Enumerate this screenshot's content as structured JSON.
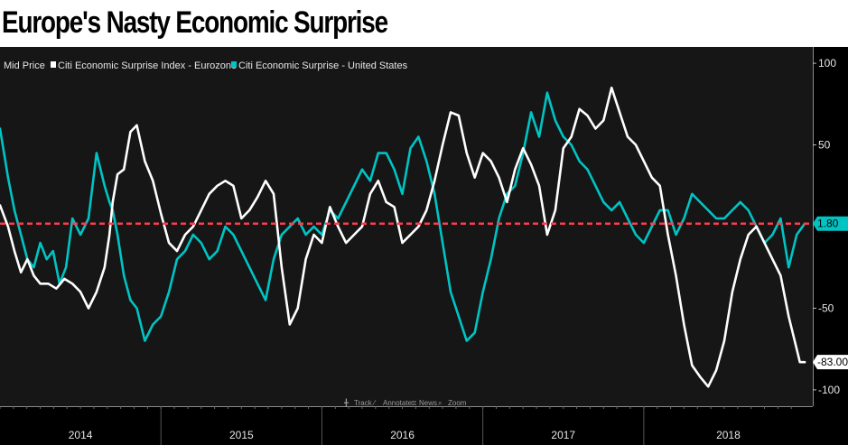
{
  "title": "Europe's Nasty Economic Surprise",
  "legend": {
    "prefix": "Mid Price",
    "series": [
      {
        "name": "Citi Economic Surprise Index - Eurozone",
        "color": "#ffffff"
      },
      {
        "name": "Citi Economic Surprise - United States",
        "color": "#00c4c4"
      }
    ]
  },
  "toolbar": [
    {
      "label": "Track",
      "icon": "crosshair-icon"
    },
    {
      "label": "Annotate",
      "icon": "pencil-icon"
    },
    {
      "label": "News",
      "icon": "news-icon"
    },
    {
      "label": "Zoom",
      "icon": "magnifier-icon"
    }
  ],
  "colors": {
    "background": "#000000",
    "plot_background": "#161616",
    "reference_line": "#ff3b4e",
    "us_tag": "#00c4c4",
    "ez_tag": "#ffffff"
  },
  "chart_data": {
    "type": "line",
    "title": "Europe's Nasty Economic Surprise",
    "xlabel": "",
    "ylabel": "",
    "x_unit": "year",
    "xlim": [
      2013.55,
      2018.6
    ],
    "ylim": [
      -110,
      110
    ],
    "y_ticks": [
      100,
      50,
      -50,
      -100
    ],
    "y_tick_labels": [
      "100",
      "50",
      "-50",
      "-100"
    ],
    "x_periods": [
      {
        "label": "2014",
        "start": 2013.55,
        "end": 2014.55
      },
      {
        "label": "2015",
        "start": 2014.55,
        "end": 2015.55
      },
      {
        "label": "2016",
        "start": 2015.55,
        "end": 2016.55
      },
      {
        "label": "2017",
        "start": 2016.55,
        "end": 2017.55
      },
      {
        "label": "2018",
        "start": 2017.55,
        "end": 2018.6
      }
    ],
    "grid": false,
    "legend_position": "top-left",
    "reference_line": {
      "value": 1.8,
      "label": "1.80",
      "style": "dashed"
    },
    "last_value_tags": [
      {
        "series": "Citi Economic Surprise - United States",
        "label": "1.80",
        "value": 1.8
      },
      {
        "series": "Citi Economic Surprise Index - Eurozone",
        "label": "-83.00",
        "value": -83.0
      }
    ],
    "series": [
      {
        "name": "Citi Economic Surprise Index - Eurozone",
        "color": "#ffffff",
        "x": [
          2013.55,
          2013.6,
          2013.64,
          2013.68,
          2013.72,
          2013.76,
          2013.8,
          2013.85,
          2013.9,
          2013.95,
          2014.0,
          2014.05,
          2014.1,
          2014.15,
          2014.2,
          2014.23,
          2014.25,
          2014.28,
          2014.32,
          2014.36,
          2014.4,
          2014.45,
          2014.5,
          2014.55,
          2014.6,
          2014.65,
          2014.7,
          2014.75,
          2014.8,
          2014.85,
          2014.9,
          2014.95,
          2015.0,
          2015.05,
          2015.1,
          2015.15,
          2015.2,
          2015.25,
          2015.3,
          2015.35,
          2015.4,
          2015.45,
          2015.5,
          2015.55,
          2015.6,
          2015.65,
          2015.7,
          2015.75,
          2015.8,
          2015.85,
          2015.9,
          2015.95,
          2016.0,
          2016.05,
          2016.1,
          2016.15,
          2016.2,
          2016.25,
          2016.3,
          2016.35,
          2016.4,
          2016.45,
          2016.5,
          2016.55,
          2016.6,
          2016.65,
          2016.7,
          2016.75,
          2016.8,
          2016.85,
          2016.9,
          2016.95,
          2017.0,
          2017.05,
          2017.1,
          2017.15,
          2017.2,
          2017.25,
          2017.3,
          2017.35,
          2017.4,
          2017.45,
          2017.5,
          2017.55,
          2017.6,
          2017.65,
          2017.7,
          2017.75,
          2017.8,
          2017.85,
          2017.9,
          2017.95,
          2018.0,
          2018.05,
          2018.1,
          2018.15,
          2018.2,
          2018.25,
          2018.3,
          2018.35,
          2018.4,
          2018.45,
          2018.5,
          2018.52,
          2018.55
        ],
        "y": [
          13,
          0,
          -15,
          -28,
          -20,
          -30,
          -35,
          -35,
          -38,
          -32,
          -35,
          -40,
          -50,
          -40,
          -25,
          -5,
          15,
          32,
          35,
          58,
          62,
          40,
          28,
          8,
          -10,
          -15,
          -5,
          0,
          10,
          20,
          25,
          28,
          25,
          5,
          10,
          18,
          28,
          20,
          -25,
          -60,
          -50,
          -20,
          -5,
          -10,
          12,
          0,
          -10,
          -5,
          0,
          20,
          28,
          15,
          12,
          -10,
          -5,
          0,
          10,
          28,
          50,
          70,
          68,
          45,
          30,
          45,
          40,
          30,
          15,
          35,
          48,
          38,
          25,
          -5,
          10,
          48,
          55,
          72,
          68,
          60,
          65,
          85,
          70,
          55,
          50,
          40,
          30,
          25,
          -5,
          -30,
          -60,
          -85,
          -92,
          -98,
          -88,
          -70,
          -40,
          -20,
          -5,
          0,
          -10,
          -20,
          -30,
          -55,
          -75,
          -83,
          -83
        ]
      },
      {
        "name": "Citi Economic Surprise - United States",
        "color": "#00c4c4",
        "x": [
          2013.55,
          2013.6,
          2013.64,
          2013.68,
          2013.72,
          2013.76,
          2013.8,
          2013.84,
          2013.88,
          2013.92,
          2013.96,
          2014.0,
          2014.05,
          2014.1,
          2014.15,
          2014.2,
          2014.23,
          2014.25,
          2014.28,
          2014.32,
          2014.36,
          2014.4,
          2014.45,
          2014.5,
          2014.55,
          2014.6,
          2014.65,
          2014.7,
          2014.75,
          2014.8,
          2014.85,
          2014.9,
          2014.95,
          2015.0,
          2015.05,
          2015.1,
          2015.15,
          2015.2,
          2015.25,
          2015.3,
          2015.35,
          2015.4,
          2015.45,
          2015.5,
          2015.55,
          2015.6,
          2015.65,
          2015.7,
          2015.75,
          2015.8,
          2015.85,
          2015.9,
          2015.95,
          2016.0,
          2016.05,
          2016.1,
          2016.15,
          2016.2,
          2016.25,
          2016.3,
          2016.35,
          2016.4,
          2016.45,
          2016.5,
          2016.55,
          2016.6,
          2016.65,
          2016.7,
          2016.75,
          2016.8,
          2016.85,
          2016.9,
          2016.95,
          2017.0,
          2017.05,
          2017.1,
          2017.15,
          2017.2,
          2017.25,
          2017.3,
          2017.35,
          2017.4,
          2017.45,
          2017.5,
          2017.55,
          2017.6,
          2017.65,
          2017.7,
          2017.75,
          2017.8,
          2017.85,
          2017.9,
          2017.95,
          2018.0,
          2018.05,
          2018.1,
          2018.15,
          2018.2,
          2018.25,
          2018.3,
          2018.35,
          2018.4,
          2018.45,
          2018.5,
          2018.55
        ],
        "y": [
          60,
          30,
          10,
          -5,
          -20,
          -25,
          -10,
          -20,
          -15,
          -35,
          -25,
          5,
          -5,
          5,
          45,
          25,
          15,
          10,
          -5,
          -30,
          -45,
          -50,
          -70,
          -60,
          -55,
          -40,
          -20,
          -15,
          -5,
          -10,
          -20,
          -15,
          0,
          -5,
          -15,
          -25,
          -35,
          -45,
          -20,
          -5,
          0,
          5,
          -5,
          0,
          -5,
          10,
          5,
          15,
          25,
          35,
          28,
          45,
          45,
          35,
          20,
          48,
          55,
          40,
          20,
          -10,
          -40,
          -55,
          -70,
          -65,
          -40,
          -20,
          5,
          20,
          25,
          45,
          70,
          55,
          82,
          65,
          55,
          50,
          40,
          35,
          25,
          15,
          10,
          15,
          5,
          -5,
          -10,
          0,
          10,
          10,
          -5,
          5,
          20,
          15,
          10,
          5,
          5,
          10,
          15,
          10,
          0,
          -10,
          -5,
          5,
          -25,
          -5,
          1.8
        ]
      }
    ]
  }
}
